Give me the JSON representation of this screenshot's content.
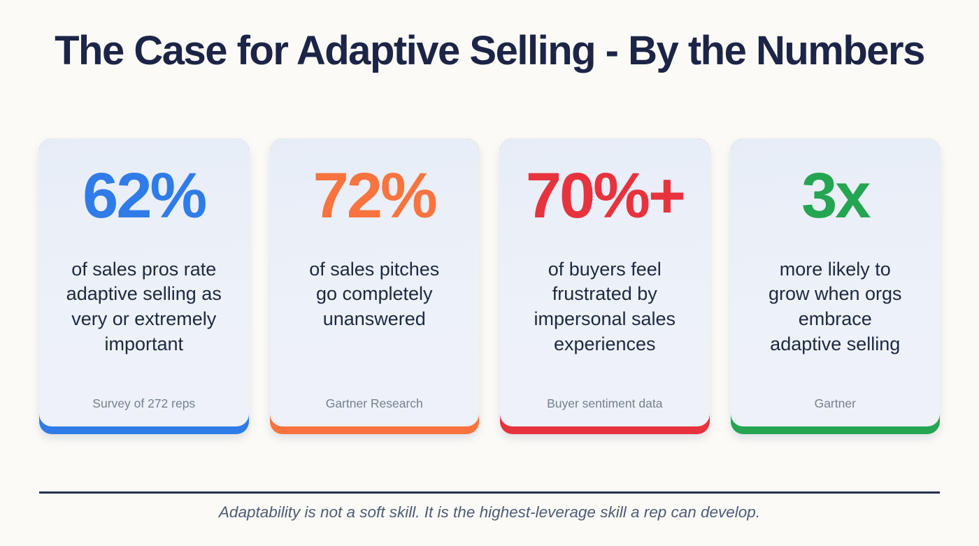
{
  "page": {
    "title": "The Case for Adaptive Selling - By the Numbers",
    "footer_quote": "Adaptability is not a soft skill. It is the highest-leverage skill a rep can develop."
  },
  "colors": {
    "title_navy": "#1c2547",
    "body_navy": "#1d2940",
    "source_gray": "#72808f",
    "card_background": "#e9eef6",
    "divider_navy": "#233050",
    "blue": "#2f7ce8",
    "orange": "#f8733e",
    "red": "#e6333e",
    "green": "#25a551"
  },
  "cards": [
    {
      "stat": "62%",
      "description": "of sales pros rate\nadaptive selling as\nvery or extremely\nimportant",
      "source": "Survey of 272 reps",
      "accent": "#2f7ce8"
    },
    {
      "stat": "72%",
      "description": "of sales pitches\ngo completely\nunanswered",
      "source": "Gartner Research",
      "accent": "#f8733e"
    },
    {
      "stat": "70%+",
      "description": "of buyers feel\nfrustrated by\nimpersonal sales\nexperiences",
      "source": "Buyer sentiment data",
      "accent": "#e6333e"
    },
    {
      "stat": "3x",
      "description": "more likely to\ngrow when orgs\nembrace\nadaptive selling",
      "source": "Gartner",
      "accent": "#25a551"
    }
  ]
}
